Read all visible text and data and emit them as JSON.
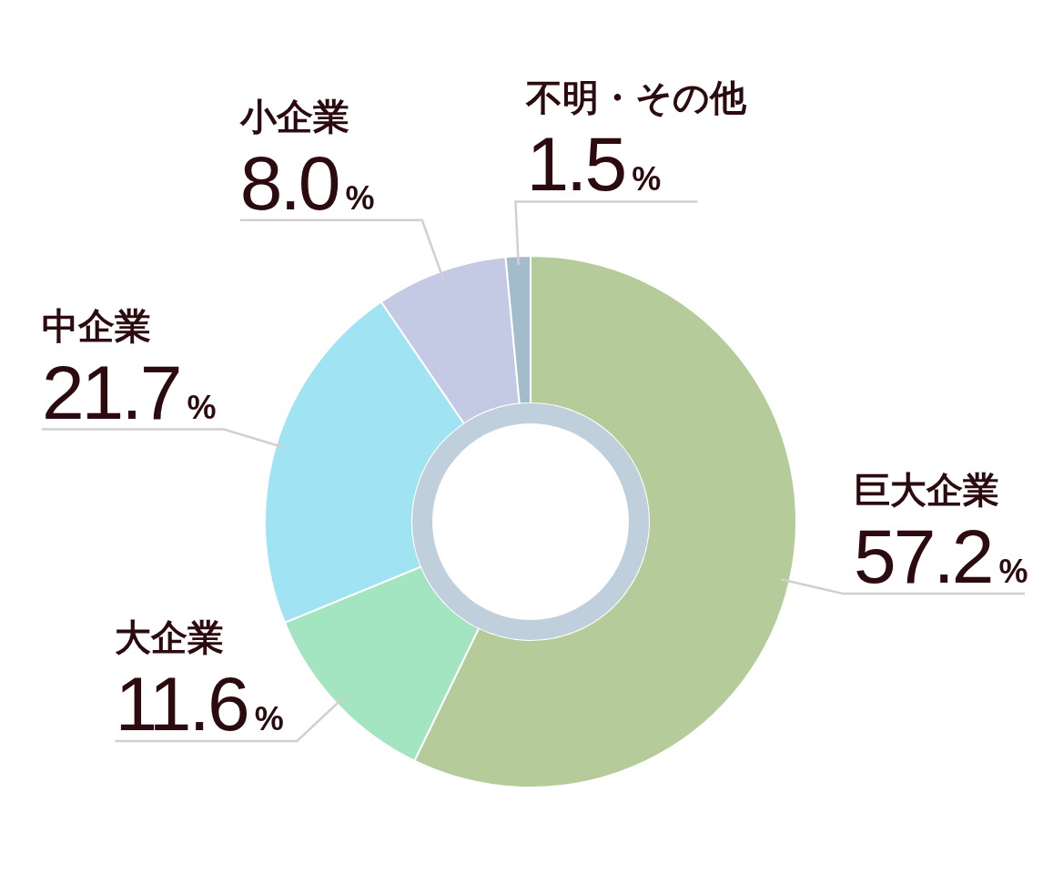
{
  "chart_data": {
    "type": "donut",
    "categories": [
      "巨大企業",
      "大企業",
      "中企業",
      "小企業",
      "不明・その他"
    ],
    "values": [
      57.2,
      11.6,
      21.7,
      8.0,
      1.5
    ],
    "colors": [
      "#b5cc9a",
      "#a3e4c1",
      "#a0e4f3",
      "#c5cae4",
      "#a3bccb"
    ],
    "value_labels": [
      "57.2%",
      "11.6%",
      "21.7%",
      "8.0%",
      "1.5%"
    ]
  }
}
